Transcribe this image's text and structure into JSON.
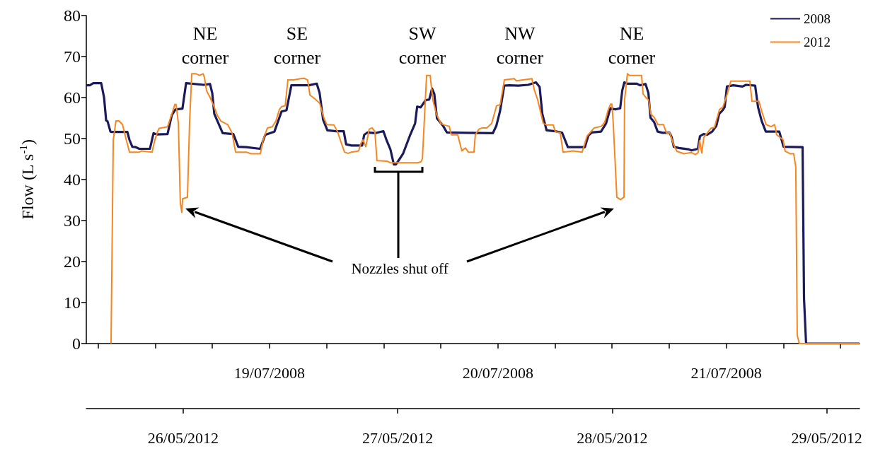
{
  "chart_data": {
    "type": "line",
    "ylabel": "Flow (L s$^{-1}$)",
    "ylim": [
      0,
      80
    ],
    "yticks": [
      0,
      10,
      20,
      30,
      40,
      50,
      60,
      70,
      80
    ],
    "xlim": [
      "2008-07-18T04:45",
      "2008-07-21T14:00"
    ],
    "xticks": [
      {
        "value": "2008-07-18T06:00",
        "label": null
      },
      {
        "value": "2008-07-18T12:00",
        "label": null
      },
      {
        "value": "2008-07-18T18:00",
        "label": null
      },
      {
        "value": "2008-07-19",
        "label": "19/07/2008"
      },
      {
        "value": "2008-07-19T06:00",
        "label": null
      },
      {
        "value": "2008-07-19T12:00",
        "label": null
      },
      {
        "value": "2008-07-19T18:00",
        "label": null
      },
      {
        "value": "2008-07-20",
        "label": "20/07/2008"
      },
      {
        "value": "2008-07-20T06:00",
        "label": null
      },
      {
        "value": "2008-07-20T12:00",
        "label": null
      },
      {
        "value": "2008-07-20T18:00",
        "label": null
      },
      {
        "value": "2008-07-21",
        "label": "21/07/2008"
      },
      {
        "value": "2008-07-21T06:00",
        "label": null
      },
      {
        "value": "2008-07-21T12:00",
        "label": null
      }
    ],
    "x2lim": [
      "2012-05-25T13:10",
      "2012-05-29T03:40"
    ],
    "x2ticks": [
      {
        "value": "2012-05-26",
        "label": "26/05/2012"
      },
      {
        "value": "2012-05-27",
        "label": "27/05/2012"
      },
      {
        "value": "2012-05-28",
        "label": "28/05/2012"
      },
      {
        "value": "2012-05-29",
        "label": "29/05/2012"
      }
    ],
    "legend": "top right",
    "marker": "none",
    "series": [
      {
        "name": "2008",
        "color": "#1b1b5c",
        "x": [
          "2008-07-18T04:45",
          "2008-07-18T05:07",
          "2008-07-18T05:29",
          "2008-07-18T06:19",
          "2008-07-18T06:37",
          "2008-07-18T06:50",
          "2008-07-18T06:59",
          "2008-07-18T07:17",
          "2008-07-18T07:25",
          "2008-07-18T09:04",
          "2008-07-18T09:17",
          "2008-07-18T09:35",
          "2008-07-18T09:57",
          "2008-07-18T10:19",
          "2008-07-18T11:26",
          "2008-07-18T11:49",
          "2008-07-18T12:11",
          "2008-07-18T13:17",
          "2008-07-18T13:44",
          "2008-07-18T14:07",
          "2008-07-18T14:51",
          "2008-07-18T15:14",
          "2008-07-18T17:05",
          "2008-07-18T17:45",
          "2008-07-18T17:59",
          "2008-07-18T18:12",
          "2008-07-18T19:05",
          "2008-07-18T20:12",
          "2008-07-18T20:43",
          "2008-07-18T21:32",
          "2008-07-18T23:01",
          "2008-07-18T23:33",
          "2008-07-19T00:31",
          "2008-07-19T01:16",
          "2008-07-19T01:47",
          "2008-07-19T02:18",
          "2008-07-19T04:09",
          "2008-07-19T04:58",
          "2008-07-19T05:16",
          "2008-07-19T05:38",
          "2008-07-19T06:05",
          "2008-07-19T06:59",
          "2008-07-19T07:48",
          "2008-07-19T08:03",
          "2008-07-19T08:37",
          "2008-07-19T09:44",
          "2008-07-19T09:57",
          "2008-07-19T10:19",
          "2008-07-19T11:04",
          "2008-07-19T11:58",
          "2008-07-19T12:20",
          "2008-07-19T12:42",
          "2008-07-19T13:04",
          "2008-07-19T13:17",
          "2008-07-19T13:40",
          "2008-07-19T14:02",
          "2008-07-19T14:47",
          "2008-07-19T15:18",
          "2008-07-19T15:31",
          "2008-07-19T15:53",
          "2008-07-19T16:25",
          "2008-07-19T16:47",
          "2008-07-19T17:05",
          "2008-07-19T17:19",
          "2008-07-19T17:36",
          "2008-07-19T18:16",
          "2008-07-19T18:38",
          "2008-07-19T20:30",
          "2008-07-19T23:28",
          "2008-07-19T23:50",
          "2008-07-20T00:13",
          "2008-07-20T00:40",
          "2008-07-20T01:11",
          "2008-07-20T02:09",
          "2008-07-20T03:11",
          "2008-07-20T04:00",
          "2008-07-20T04:23",
          "2008-07-20T04:40",
          "2008-07-20T05:07",
          "2008-07-20T06:01",
          "2008-07-20T06:45",
          "2008-07-20T07:21",
          "2008-07-20T09:08",
          "2008-07-20T09:30",
          "2008-07-20T09:52",
          "2008-07-20T10:50",
          "2008-07-20T11:22",
          "2008-07-20T11:49",
          "2008-07-20T12:20",
          "2008-07-20T12:51",
          "2008-07-20T13:04",
          "2008-07-20T13:17",
          "2008-07-20T13:35",
          "2008-07-20T14:34",
          "2008-07-20T14:56",
          "2008-07-20T15:31",
          "2008-07-20T15:49",
          "2008-07-20T16:02",
          "2008-07-20T16:25",
          "2008-07-20T16:47",
          "2008-07-20T17:18",
          "2008-07-20T18:03",
          "2008-07-20T18:16",
          "2008-07-20T18:29",
          "2008-07-20T19:01",
          "2008-07-20T19:59",
          "2008-07-20T20:21",
          "2008-07-20T21:01",
          "2008-07-20T21:14",
          "2008-07-20T21:37",
          "2008-07-20T21:59",
          "2008-07-20T22:31",
          "2008-07-20T22:57",
          "2008-07-20T23:15",
          "2008-07-20T23:37",
          "2008-07-20T23:50",
          "2008-07-21T00:04",
          "2008-07-21T00:44",
          "2008-07-21T01:42",
          "2008-07-21T02:04",
          "2008-07-21T03:02",
          "2008-07-21T03:20",
          "2008-07-21T03:43",
          "2008-07-21T04:09",
          "2008-07-21T05:34",
          "2008-07-21T06:01",
          "2008-07-21T07:47",
          "2008-07-21T08:01",
          "2008-07-21T08:10",
          "2008-07-21T08:23",
          "2008-07-21T14:00"
        ],
        "values": [
          63,
          63,
          63.5,
          63.5,
          60,
          54.4,
          54.2,
          51.7,
          51.6,
          51.6,
          49.7,
          48,
          47.9,
          47.5,
          47.5,
          51.3,
          51,
          51.1,
          55.7,
          57.1,
          57.3,
          63.5,
          63.1,
          63.3,
          61.1,
          56,
          51.3,
          51.1,
          48,
          47.9,
          47.5,
          50.9,
          51.7,
          56.6,
          56.9,
          63,
          63,
          63.4,
          61.1,
          54.6,
          52,
          51.8,
          51.8,
          48.6,
          48.3,
          48.3,
          50.9,
          51.5,
          51.3,
          51.8,
          49.4,
          47.4,
          43.7,
          43.7,
          45,
          46.3,
          50.9,
          53.7,
          57.8,
          57.6,
          59.4,
          59.5,
          62.2,
          60.9,
          54.9,
          53,
          51.5,
          51.4,
          51.3,
          53.1,
          56.6,
          62.9,
          63,
          62.9,
          63.1,
          63.7,
          62.6,
          56,
          52,
          51.8,
          51.4,
          47.9,
          47.9,
          50.7,
          51.5,
          51.7,
          53.7,
          57.4,
          57.1,
          57.4,
          61.7,
          63.7,
          63.4,
          63.4,
          63,
          63.3,
          61.1,
          55.1,
          54,
          51.7,
          51.4,
          51.4,
          50.3,
          48,
          47.7,
          47.4,
          47.1,
          47.5,
          50.6,
          51.1,
          50.9,
          51.7,
          53.1,
          56,
          56.9,
          57.7,
          62.7,
          63,
          62.7,
          63.1,
          62.9,
          57.7,
          54.3,
          51.7,
          51.7,
          48,
          47.9,
          47.9,
          11,
          0,
          0
        ]
      },
      {
        "name": "2012",
        "color": "#f7861f",
        "axis": "x2",
        "x": [
          "2012-05-25T15:56",
          "2012-05-25T16:11",
          "2012-05-25T16:29",
          "2012-05-25T16:49",
          "2012-05-25T17:13",
          "2012-05-25T17:36",
          "2012-05-25T18:00",
          "2012-05-25T19:06",
          "2012-05-25T19:20",
          "2012-05-25T20:32",
          "2012-05-25T20:46",
          "2012-05-25T21:05",
          "2012-05-25T21:19",
          "2012-05-25T21:52",
          "2012-05-25T22:16",
          "2012-05-25T22:31",
          "2012-05-25T22:44",
          "2012-05-25T23:04",
          "2012-05-25T23:13",
          "2012-05-25T23:28",
          "2012-05-25T23:41",
          "2012-05-25T23:51",
          "2012-05-25T23:56",
          "2012-05-26T00:29",
          "2012-05-26T00:43",
          "2012-05-26T00:58",
          "2012-05-26T01:26",
          "2012-05-26T01:50",
          "2012-05-26T02:14",
          "2012-05-26T02:23",
          "2012-05-26T02:37",
          "2012-05-26T03:01",
          "2012-05-26T03:25",
          "2012-05-26T03:49",
          "2012-05-26T04:12",
          "2012-05-26T04:59",
          "2012-05-26T05:28",
          "2012-05-26T05:52",
          "2012-05-26T07:03",
          "2012-05-26T07:37",
          "2012-05-26T08:38",
          "2012-05-26T08:57",
          "2012-05-26T09:26",
          "2012-05-26T09:59",
          "2012-05-26T10:23",
          "2012-05-26T10:46",
          "2012-05-26T11:01",
          "2012-05-26T11:25",
          "2012-05-26T11:43",
          "2012-05-26T12:22",
          "2012-05-26T13:09",
          "2012-05-26T13:32",
          "2012-05-26T13:56",
          "2012-05-26T14:11",
          "2012-05-26T14:44",
          "2012-05-26T15:17",
          "2012-05-26T15:41",
          "2012-05-26T16:04",
          "2012-05-26T16:52",
          "2012-05-26T17:16",
          "2012-05-26T17:40",
          "2012-05-26T18:03",
          "2012-05-26T18:27",
          "2012-05-26T18:50",
          "2012-05-26T19:38",
          "2012-05-26T19:52",
          "2012-05-26T20:07",
          "2012-05-26T20:26",
          "2012-05-26T20:49",
          "2012-05-26T21:08",
          "2012-05-26T21:27",
          "2012-05-26T21:41",
          "2012-05-26T22:48",
          "2012-05-26T23:12",
          "2012-05-27T02:12",
          "2012-05-27T02:36",
          "2012-05-27T02:46",
          "2012-05-27T03:14",
          "2012-05-27T03:38",
          "2012-05-27T03:56",
          "2012-05-27T04:20",
          "2012-05-27T04:49",
          "2012-05-27T05:13",
          "2012-05-27T05:46",
          "2012-05-27T06:00",
          "2012-05-27T06:43",
          "2012-05-27T07:11",
          "2012-05-27T07:35",
          "2012-05-27T07:54",
          "2012-05-27T08:32",
          "2012-05-27T08:41",
          "2012-05-27T09:05",
          "2012-05-27T09:29",
          "2012-05-27T09:58",
          "2012-05-27T10:31",
          "2012-05-27T11:04",
          "2012-05-27T11:28",
          "2012-05-27T11:56",
          "2012-05-27T13:02",
          "2012-05-27T13:17",
          "2012-05-27T14:38",
          "2012-05-27T15:01",
          "2012-05-27T15:16",
          "2012-05-27T15:40",
          "2012-05-27T16:17",
          "2012-05-27T16:41",
          "2012-05-27T17:24",
          "2012-05-27T17:38",
          "2012-05-27T18:11",
          "2012-05-27T18:30",
          "2012-05-27T19:37",
          "2012-05-27T20:38",
          "2012-05-27T21:11",
          "2012-05-27T21:59",
          "2012-05-27T22:47",
          "2012-05-27T23:10",
          "2012-05-27T23:34",
          "2012-05-27T23:49",
          "2012-05-27T23:58",
          "2012-05-28T00:07",
          "2012-05-28T00:31",
          "2012-05-28T00:55",
          "2012-05-28T01:19",
          "2012-05-28T01:23",
          "2012-05-28T01:42",
          "2012-05-28T01:56",
          "2012-05-28T03:17",
          "2012-05-28T03:27",
          "2012-05-28T03:46",
          "2012-05-28T04:05",
          "2012-05-28T04:19",
          "2012-05-28T04:43",
          "2012-05-28T05:07",
          "2012-05-28T05:44",
          "2012-05-28T06:04",
          "2012-05-28T06:27",
          "2012-05-28T06:51",
          "2012-05-28T07:14",
          "2012-05-28T08:02",
          "2012-05-28T08:50",
          "2012-05-28T09:18",
          "2012-05-28T09:37",
          "2012-05-28T09:47",
          "2012-05-28T10:01",
          "2012-05-28T10:15",
          "2012-05-28T10:39",
          "2012-05-28T11:02",
          "2012-05-28T11:26",
          "2012-05-28T12:00",
          "2012-05-28T12:23",
          "2012-05-28T12:52",
          "2012-05-28T13:16",
          "2012-05-28T15:24",
          "2012-05-28T15:38",
          "2012-05-28T16:25",
          "2012-05-28T16:44",
          "2012-05-28T17:13",
          "2012-05-28T17:46",
          "2012-05-28T18:10",
          "2012-05-28T18:24",
          "2012-05-28T19:07",
          "2012-05-28T19:21",
          "2012-05-28T19:54",
          "2012-05-28T20:18",
          "2012-05-28T20:32",
          "2012-05-28T20:42",
          "2012-05-28T20:56",
          "2012-05-29T03:40"
        ],
        "values": [
          0,
          49.7,
          54.3,
          54.3,
          53.4,
          50,
          46.7,
          46.7,
          47,
          46.7,
          49.1,
          51.4,
          52.5,
          52.7,
          52.9,
          54.6,
          56,
          58.3,
          58.3,
          53.7,
          34.3,
          32,
          35.3,
          35.7,
          53.7,
          65.8,
          65.8,
          65.4,
          65.8,
          64.9,
          61.7,
          60,
          58,
          55.7,
          54.3,
          53.4,
          51.4,
          46.7,
          46.7,
          46.3,
          46.3,
          49.7,
          52.6,
          52.9,
          54.3,
          57.1,
          57.8,
          58,
          64.3,
          64.3,
          64.6,
          64.7,
          64.3,
          60.6,
          59.7,
          58.6,
          55.4,
          53.4,
          53.3,
          51.7,
          49.1,
          46.7,
          46.4,
          46.7,
          47,
          48.7,
          49.7,
          48,
          52.3,
          52.6,
          51.7,
          44.6,
          44.5,
          44.1,
          44.1,
          44.3,
          45.1,
          65.4,
          65.4,
          59.4,
          56,
          53.7,
          53.3,
          53,
          50.9,
          50.9,
          47,
          47.7,
          46.7,
          46.7,
          50.9,
          52.3,
          52.6,
          52.6,
          53.7,
          58,
          58.3,
          64.3,
          64.6,
          64.1,
          64.5,
          64.6,
          62,
          59.4,
          53.7,
          53.3,
          53.3,
          51.7,
          51.4,
          46.7,
          47,
          46.7,
          50.6,
          52.6,
          53,
          54,
          57.1,
          58.4,
          58.4,
          53.7,
          35.7,
          35.1,
          35.7,
          59.4,
          65.8,
          65.4,
          65.4,
          60.9,
          60,
          59.4,
          56,
          55.1,
          53.4,
          53.4,
          51.4,
          51.4,
          48.6,
          46.9,
          46.3,
          46.6,
          46.1,
          46.6,
          49.5,
          46.5,
          50.3,
          51.4,
          52.5,
          52.7,
          57.1,
          57.7,
          60.9,
          64,
          64,
          59.1,
          59.1,
          56.6,
          53.4,
          52.9,
          53.4,
          50.9,
          49.7,
          46.9,
          46.3,
          46.3,
          43.1,
          2,
          0,
          0
        ]
      }
    ],
    "annotations": [
      "NE\ncorner",
      "SE\ncorner",
      "SW\ncorner",
      "NW\ncorner",
      "NE\ncorner",
      "Nozzles shut off"
    ]
  }
}
